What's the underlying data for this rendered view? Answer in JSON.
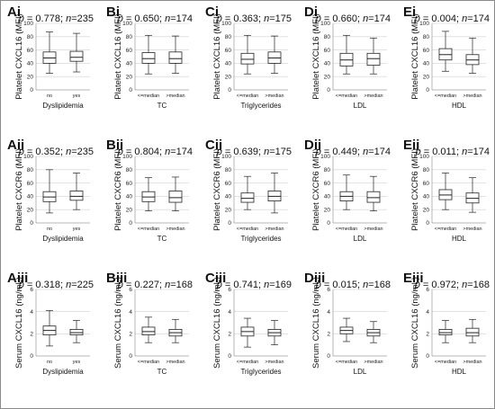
{
  "chart_data": [
    {
      "panel": "Ai",
      "type": "box",
      "ylabel": "Platelet CXCL16 (MFI)",
      "xlabel": "Dyslipidemia",
      "categories": [
        "no",
        "yes"
      ],
      "stats": {
        "p": "0.778",
        "n": "235"
      },
      "ylim": [
        0,
        100
      ],
      "yticks": [
        "0",
        "20",
        "40",
        "60",
        "80",
        "100"
      ],
      "grid": true,
      "boxes": [
        {
          "min": 25,
          "q1": 40,
          "median": 48,
          "q3": 57,
          "max": 87
        },
        {
          "min": 27,
          "q1": 43,
          "median": 49,
          "q3": 58,
          "max": 85
        }
      ]
    },
    {
      "panel": "Bi",
      "type": "box",
      "ylabel": "Platelet CXCL16 (MFI)",
      "xlabel": "TC",
      "categories": [
        "<=median",
        ">median"
      ],
      "stats": {
        "p": "0.650",
        "n": "174"
      },
      "ylim": [
        0,
        100
      ],
      "yticks": [
        "0",
        "20",
        "40",
        "60",
        "80",
        "100"
      ],
      "grid": true,
      "boxes": [
        {
          "min": 24,
          "q1": 40,
          "median": 47,
          "q3": 56,
          "max": 82
        },
        {
          "min": 25,
          "q1": 40,
          "median": 47,
          "q3": 57,
          "max": 81
        }
      ]
    },
    {
      "panel": "Ci",
      "type": "box",
      "ylabel": "Platelet CXCL16 (MFI)",
      "xlabel": "Triglycerides",
      "categories": [
        "<=median",
        ">median"
      ],
      "stats": {
        "p": "0.363",
        "n": "175"
      },
      "ylim": [
        0,
        100
      ],
      "yticks": [
        "0",
        "20",
        "40",
        "60",
        "80",
        "100"
      ],
      "grid": true,
      "boxes": [
        {
          "min": 24,
          "q1": 39,
          "median": 46,
          "q3": 55,
          "max": 82
        },
        {
          "min": 25,
          "q1": 40,
          "median": 48,
          "q3": 57,
          "max": 81
        }
      ]
    },
    {
      "panel": "Di",
      "type": "box",
      "ylabel": "Platelet CXCL16 (MFI)",
      "xlabel": "LDL",
      "categories": [
        "<=median",
        ">median"
      ],
      "stats": {
        "p": "0.660",
        "n": "174"
      },
      "ylim": [
        0,
        100
      ],
      "yticks": [
        "0",
        "20",
        "40",
        "60",
        "80",
        "100"
      ],
      "grid": true,
      "boxes": [
        {
          "min": 24,
          "q1": 36,
          "median": 45,
          "q3": 55,
          "max": 82
        },
        {
          "min": 24,
          "q1": 37,
          "median": 47,
          "q3": 55,
          "max": 78
        }
      ]
    },
    {
      "panel": "Ei",
      "type": "box",
      "ylabel": "Platelet CXCL16 (MFI)",
      "xlabel": "HDL",
      "categories": [
        "<=median",
        ">median"
      ],
      "stats": {
        "p": "0.004",
        "n": "174"
      },
      "ylim": [
        0,
        100
      ],
      "yticks": [
        "0",
        "20",
        "40",
        "60",
        "80",
        "100"
      ],
      "grid": true,
      "boxes": [
        {
          "min": 28,
          "q1": 45,
          "median": 53,
          "q3": 62,
          "max": 88
        },
        {
          "min": 25,
          "q1": 38,
          "median": 45,
          "q3": 53,
          "max": 78
        }
      ]
    },
    {
      "panel": "Aii",
      "type": "box",
      "ylabel": "Platelet CXCR6 (MFI)",
      "xlabel": "Dyslipidemia",
      "categories": [
        "no",
        "yes"
      ],
      "stats": {
        "p": "0.352",
        "n": "235"
      },
      "ylim": [
        0,
        100
      ],
      "yticks": [
        "0",
        "20",
        "40",
        "60",
        "80",
        "100"
      ],
      "grid": true,
      "boxes": [
        {
          "min": 15,
          "q1": 32,
          "median": 39,
          "q3": 47,
          "max": 80
        },
        {
          "min": 20,
          "q1": 34,
          "median": 40,
          "q3": 48,
          "max": 75
        }
      ]
    },
    {
      "panel": "Bii",
      "type": "box",
      "ylabel": "Platelet CXCR6 (MFI)",
      "xlabel": "TC",
      "categories": [
        "<=median",
        ">median"
      ],
      "stats": {
        "p": "0.804",
        "n": "174"
      },
      "ylim": [
        0,
        100
      ],
      "yticks": [
        "0",
        "20",
        "40",
        "60",
        "80",
        "100"
      ],
      "grid": true,
      "boxes": [
        {
          "min": 18,
          "q1": 32,
          "median": 39,
          "q3": 47,
          "max": 68
        },
        {
          "min": 18,
          "q1": 31,
          "median": 38,
          "q3": 48,
          "max": 69
        }
      ]
    },
    {
      "panel": "Cii",
      "type": "box",
      "ylabel": "Platelet CXCR6 (MFI)",
      "xlabel": "Triglycerides",
      "categories": [
        "<=median",
        ">median"
      ],
      "stats": {
        "p": "0.639",
        "n": "175"
      },
      "ylim": [
        0,
        100
      ],
      "yticks": [
        "0",
        "20",
        "40",
        "60",
        "80",
        "100"
      ],
      "grid": true,
      "boxes": [
        {
          "min": 20,
          "q1": 31,
          "median": 37,
          "q3": 45,
          "max": 70
        },
        {
          "min": 15,
          "q1": 33,
          "median": 40,
          "q3": 48,
          "max": 75
        }
      ]
    },
    {
      "panel": "Dii",
      "type": "box",
      "ylabel": "Platelet CXCR6 (MFI)",
      "xlabel": "LDL",
      "categories": [
        "<=median",
        ">median"
      ],
      "stats": {
        "p": "0.449",
        "n": "174"
      },
      "ylim": [
        0,
        100
      ],
      "yticks": [
        "0",
        "20",
        "40",
        "60",
        "80",
        "100"
      ],
      "grid": true,
      "boxes": [
        {
          "min": 20,
          "q1": 33,
          "median": 40,
          "q3": 47,
          "max": 72
        },
        {
          "min": 18,
          "q1": 31,
          "median": 38,
          "q3": 47,
          "max": 70
        }
      ]
    },
    {
      "panel": "Eii",
      "type": "box",
      "ylabel": "Platelet CXCR6 (MFI)",
      "xlabel": "HDL",
      "categories": [
        "<=median",
        ">median"
      ],
      "stats": {
        "p": "0.011",
        "n": "174"
      },
      "ylim": [
        0,
        100
      ],
      "yticks": [
        "0",
        "20",
        "40",
        "60",
        "80",
        "100"
      ],
      "grid": true,
      "boxes": [
        {
          "min": 20,
          "q1": 35,
          "median": 42,
          "q3": 50,
          "max": 75
        },
        {
          "min": 16,
          "q1": 30,
          "median": 37,
          "q3": 45,
          "max": 68
        }
      ]
    },
    {
      "panel": "Aiii",
      "type": "box",
      "ylabel": "Serum CXCL16 (ng/mL)",
      "xlabel": "Dyslipidemia",
      "categories": [
        "no",
        "yes"
      ],
      "stats": {
        "p": "0.318",
        "n": "225"
      },
      "ylim": [
        0,
        6
      ],
      "yticks": [
        "0",
        "2",
        "4",
        "6"
      ],
      "grid": true,
      "boxes": [
        {
          "min": 0.9,
          "q1": 1.9,
          "median": 2.3,
          "q3": 2.7,
          "max": 4.1
        },
        {
          "min": 1.2,
          "q1": 1.9,
          "median": 2.1,
          "q3": 2.4,
          "max": 3.2
        }
      ]
    },
    {
      "panel": "Biii",
      "type": "box",
      "ylabel": "Serum CXCL16 (ng/mL)",
      "xlabel": "TC",
      "categories": [
        "<=median",
        ">median"
      ],
      "stats": {
        "p": "0.227",
        "n": "168"
      },
      "ylim": [
        0,
        6
      ],
      "yticks": [
        "0",
        "2",
        "4",
        "6"
      ],
      "grid": true,
      "boxes": [
        {
          "min": 1.2,
          "q1": 1.9,
          "median": 2.2,
          "q3": 2.6,
          "max": 3.5
        },
        {
          "min": 1.2,
          "q1": 1.8,
          "median": 2.1,
          "q3": 2.4,
          "max": 3.3
        }
      ]
    },
    {
      "panel": "Ciii",
      "type": "box",
      "ylabel": "Serum CXCL16 (ng/mL)",
      "xlabel": "Triglycerides",
      "categories": [
        "<=median",
        ">median"
      ],
      "stats": {
        "p": "0.741",
        "n": "169"
      },
      "ylim": [
        0,
        6
      ],
      "yticks": [
        "0",
        "2",
        "4",
        "6"
      ],
      "grid": true,
      "boxes": [
        {
          "min": 0.8,
          "q1": 1.8,
          "median": 2.2,
          "q3": 2.6,
          "max": 3.4
        },
        {
          "min": 1.0,
          "q1": 1.8,
          "median": 2.1,
          "q3": 2.4,
          "max": 3.2
        }
      ]
    },
    {
      "panel": "Diii",
      "type": "box",
      "ylabel": "Serum CXCL16 (ng/mL)",
      "xlabel": "LDL",
      "categories": [
        "<=median",
        ">median"
      ],
      "stats": {
        "p": "0.015",
        "n": "168"
      },
      "ylim": [
        0,
        6
      ],
      "yticks": [
        "0",
        "2",
        "4",
        "6"
      ],
      "grid": true,
      "boxes": [
        {
          "min": 1.3,
          "q1": 2.0,
          "median": 2.3,
          "q3": 2.6,
          "max": 3.4
        },
        {
          "min": 1.2,
          "q1": 1.8,
          "median": 2.1,
          "q3": 2.4,
          "max": 3.1
        }
      ]
    },
    {
      "panel": "Eiii",
      "type": "box",
      "ylabel": "Serum CXCL16 (ng/mL)",
      "xlabel": "HDL",
      "categories": [
        "<=median",
        ">median"
      ],
      "stats": {
        "p": "0.972",
        "n": "168"
      },
      "ylim": [
        0,
        6
      ],
      "yticks": [
        "0",
        "2",
        "4",
        "6"
      ],
      "grid": true,
      "boxes": [
        {
          "min": 1.2,
          "q1": 1.9,
          "median": 2.1,
          "q3": 2.4,
          "max": 3.2
        },
        {
          "min": 1.2,
          "q1": 1.8,
          "median": 2.1,
          "q3": 2.5,
          "max": 3.3
        }
      ]
    }
  ]
}
